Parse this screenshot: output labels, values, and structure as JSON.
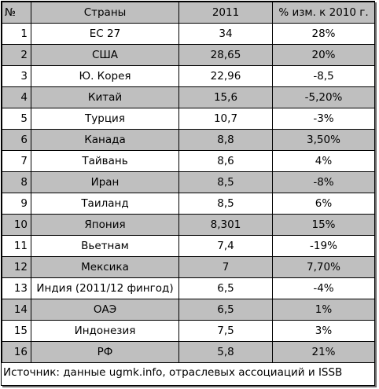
{
  "headers": {
    "num": "№",
    "country": "Страны",
    "year": "2011",
    "change": "% изм. к 2010 г."
  },
  "rows": [
    {
      "num": "1",
      "country": "ЕС 27",
      "value": "34",
      "change": "28%"
    },
    {
      "num": "2",
      "country": "США",
      "value": "28,65",
      "change": "20%"
    },
    {
      "num": "3",
      "country": "Ю. Корея",
      "value": "22,96",
      "change": "-8,5"
    },
    {
      "num": "4",
      "country": "Китай",
      "value": "15,6",
      "change": "-5,20%"
    },
    {
      "num": "5",
      "country": "Турция",
      "value": "10,7",
      "change": "-3%"
    },
    {
      "num": "6",
      "country": "Канада",
      "value": "8,8",
      "change": "3,50%"
    },
    {
      "num": "7",
      "country": "Тайвань",
      "value": "8,6",
      "change": "4%"
    },
    {
      "num": "8",
      "country": "Иран",
      "value": "8,5",
      "change": "-8%"
    },
    {
      "num": "9",
      "country": "Таиланд",
      "value": "8,5",
      "change": "6%"
    },
    {
      "num": "10",
      "country": "Япония",
      "value": "8,301",
      "change": "15%"
    },
    {
      "num": "11",
      "country": "Вьетнам",
      "value": "7,4",
      "change": "-19%"
    },
    {
      "num": "12",
      "country": "Мексика",
      "value": "7",
      "change": "7,70%"
    },
    {
      "num": "13",
      "country": "Индия (2011/12 фингод)",
      "value": "6,5",
      "change": "-4%"
    },
    {
      "num": "14",
      "country": "ОАЭ",
      "value": "6,5",
      "change": "1%"
    },
    {
      "num": "15",
      "country": "Индонезия",
      "value": "7,5",
      "change": "3%"
    },
    {
      "num": "16",
      "country": "РФ",
      "value": "5,8",
      "change": "21%"
    }
  ],
  "source": "Источник: данные ugmk.info, отраслевых ассоциаций и ISSB",
  "colors": {
    "shade": "#bfbfbf",
    "border": "#000000"
  }
}
